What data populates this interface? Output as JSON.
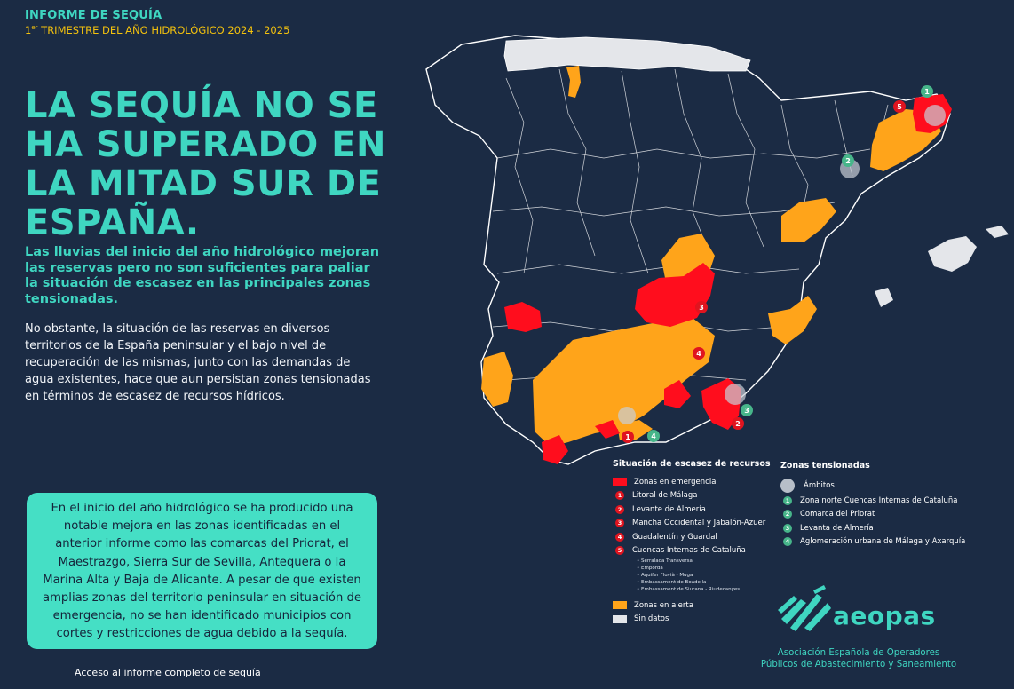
{
  "header": {
    "kicker": "INFORME DE SEQUÍA",
    "period_prefix": "1",
    "period_sup": "er",
    "period_rest": " TRIMESTRE DEL AÑO HIDROLÓGICO 2024 - 2025"
  },
  "headline": "LA SEQUÍA NO SE HA SUPERADO EN LA MITAD SUR DE ESPAÑA.",
  "subhead": "Las lluvias del inicio del año hidrológico mejoran las reservas pero no son suficientes para paliar la situación de escasez en las principales zonas tensionadas.",
  "body": "No obstante, la situación de las reservas en diversos territorios de la España peninsular y el bajo nivel de recuperación de las mismas, junto con las demandas de agua existentes, hace que aun persistan zonas tensionadas en términos de escasez de recursos hídricos.",
  "note_box": "En el inicio del año hidrológico se ha producido una notable mejora en las zonas identificadas en el anterior informe como las comarcas del Priorat, el Maestrazgo, Sierra Sur de Sevilla, Antequera o la Marina Alta y Baja de Alicante. A pesar de que existen amplias zonas del territorio peninsular en situación de emergencia, no se han identificado municipios con cortes y restricciones de agua debido a la sequía.",
  "link": "Acceso al informe completo de sequía",
  "colors": {
    "emergency": "#ff0d1d",
    "alert": "#ffa41a",
    "no_data": "#e4e6ea",
    "tension_green": "#47b58a",
    "accent": "#3fd6c1",
    "background": "#1b2b44"
  },
  "map_labels": {
    "red": [
      "5",
      "3",
      "4",
      "1",
      "2"
    ],
    "green": [
      "1",
      "2",
      "3",
      "4"
    ]
  },
  "legend_scarcity": {
    "title": "Situación de escasez de recursos",
    "emergency": "Zonas en emergencia",
    "items": [
      {
        "num": "1",
        "label": "Litoral de Málaga"
      },
      {
        "num": "2",
        "label": "Levante de Almería"
      },
      {
        "num": "3",
        "label": "Mancha Occidental y Jabalón-Azuer"
      },
      {
        "num": "4",
        "label": "Guadalentín y Guardal"
      },
      {
        "num": "5",
        "label": "Cuencas Internas de Cataluña"
      }
    ],
    "subitems": [
      "Serralada Transversal",
      "Empordà",
      "Aquifer Fluvià - Muga",
      "Embassament de Boadella",
      "Embassament de Siurana - Riudecanyes"
    ],
    "alert": "Zonas en alerta",
    "no_data": "Sin datos"
  },
  "legend_tension": {
    "title": "Zonas tensionadas",
    "scope": "Ámbitos",
    "items": [
      {
        "num": "1",
        "label": "Zona norte Cuencas Internas de Cataluña"
      },
      {
        "num": "2",
        "label": "Comarca del Priorat"
      },
      {
        "num": "3",
        "label": " Levanta de Almería"
      },
      {
        "num": "4",
        "label": "Aglomeración urbana de Málaga y Axarquía"
      }
    ]
  },
  "brand": {
    "name": "aeopas",
    "org_line1": "Asociación Española de Operadores",
    "org_line2": "Públicos de Abastecimiento y Saneamiento",
    "logo_icon": "splash-brushstroke-icon"
  }
}
